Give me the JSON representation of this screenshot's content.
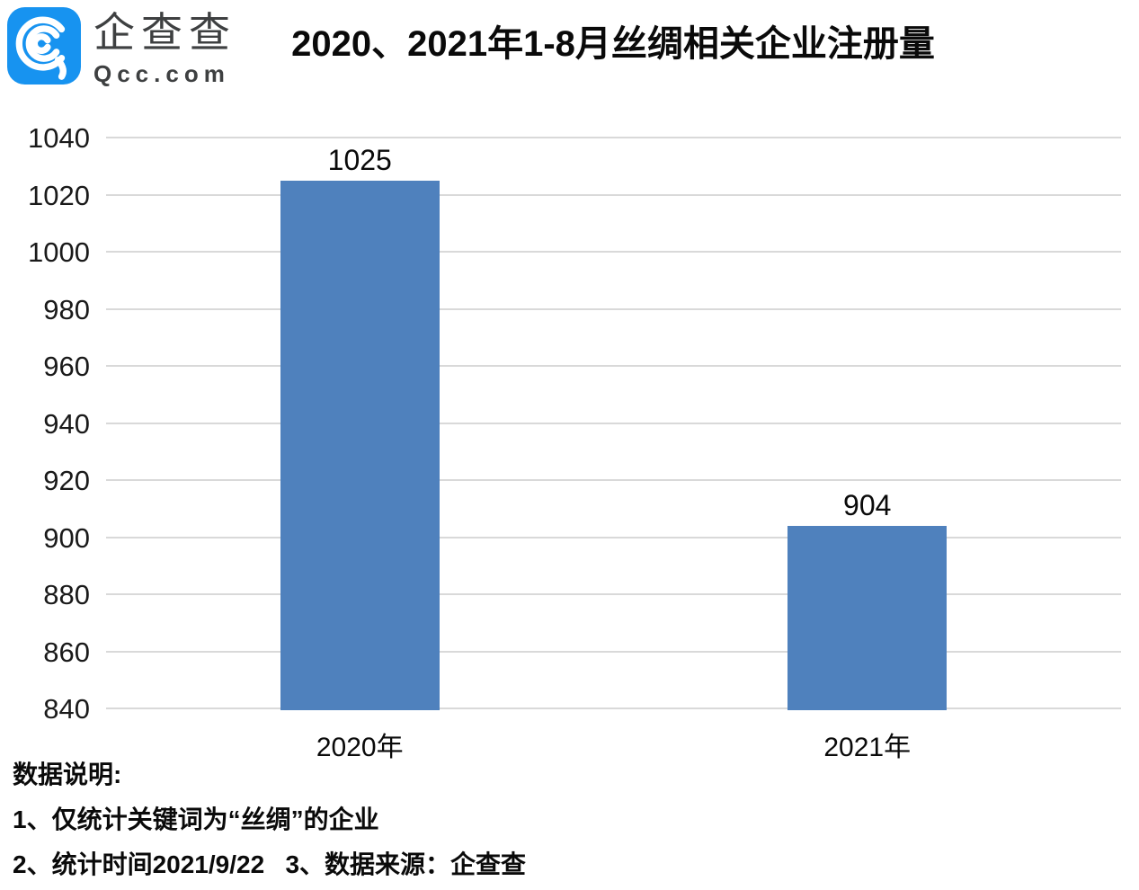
{
  "brand": {
    "name": "企查查",
    "domain": "Qcc.com",
    "logo_color": "#1793f0"
  },
  "chart_data": {
    "type": "bar",
    "title": "2020、2021年1-8月丝绸相关企业注册量",
    "categories": [
      "2020年",
      "2021年"
    ],
    "values": [
      1025,
      904
    ],
    "data_labels": [
      "1025",
      "904"
    ],
    "xlabel": "",
    "ylabel": "",
    "ylim": [
      840,
      1040
    ],
    "yticks": [
      1040,
      1020,
      1000,
      980,
      960,
      940,
      920,
      900,
      880,
      860,
      840
    ],
    "grid": true,
    "legend": "none",
    "bar_color": "#4F81BD",
    "gridline_color": "#D9D9D9"
  },
  "notes": {
    "heading": "数据说明:",
    "line1": "1、仅统计关键词为“丝绸”的企业",
    "line2": "2、统计时间2021/9/22   3、数据来源：企查查"
  }
}
